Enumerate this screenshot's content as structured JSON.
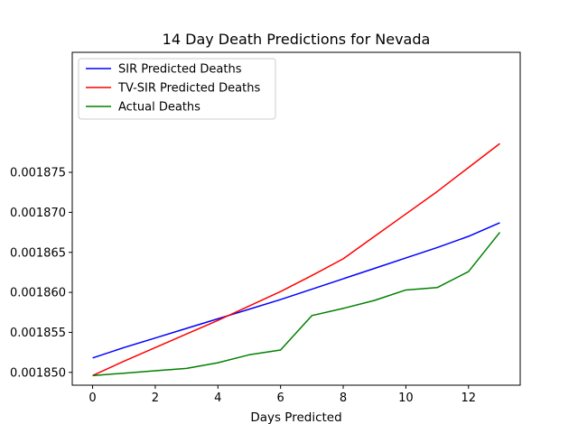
{
  "chart_data": {
    "type": "line",
    "title": "14 Day Death Predictions for Nevada",
    "xlabel": "Days Predicted",
    "ylabel": "",
    "xlim": [
      -0.65,
      13.65
    ],
    "ylim": [
      0.0018484,
      0.00189
    ],
    "x_ticks": [
      0,
      2,
      4,
      6,
      8,
      10,
      12
    ],
    "x_tick_labels": [
      "0",
      "2",
      "4",
      "6",
      "8",
      "10",
      "12"
    ],
    "y_ticks": [
      0.00185,
      0.001855,
      0.00186,
      0.001865,
      0.00187,
      0.001875
    ],
    "y_tick_labels": [
      "0.001850",
      "0.001855",
      "0.001860",
      "0.001865",
      "0.001870",
      "0.001875"
    ],
    "grid": false,
    "legend_position": "top-left",
    "x": [
      0,
      1,
      2,
      3,
      4,
      5,
      6,
      7,
      8,
      9,
      10,
      11,
      12,
      13
    ],
    "series": [
      {
        "name": "SIR Predicted Deaths",
        "color": "#0000ff",
        "values": [
          0.0018518,
          0.0018531,
          0.0018543,
          0.0018555,
          0.0018567,
          0.0018579,
          0.0018591,
          0.0018604,
          0.0018617,
          0.001863,
          0.0018643,
          0.0018656,
          0.001867,
          0.0018687
        ]
      },
      {
        "name": "TV-SIR Predicted Deaths",
        "color": "#ff0000",
        "values": [
          0.0018496,
          0.0018514,
          0.0018531,
          0.0018548,
          0.0018565,
          0.0018583,
          0.0018601,
          0.0018621,
          0.0018642,
          0.001867,
          0.0018698,
          0.0018726,
          0.0018756,
          0.0018786
        ]
      },
      {
        "name": "Actual Deaths",
        "color": "#008000",
        "values": [
          0.0018496,
          0.0018499,
          0.0018502,
          0.0018505,
          0.0018512,
          0.0018522,
          0.0018528,
          0.0018571,
          0.001858,
          0.001859,
          0.0018603,
          0.0018606,
          0.0018626,
          0.0018675
        ]
      }
    ]
  }
}
